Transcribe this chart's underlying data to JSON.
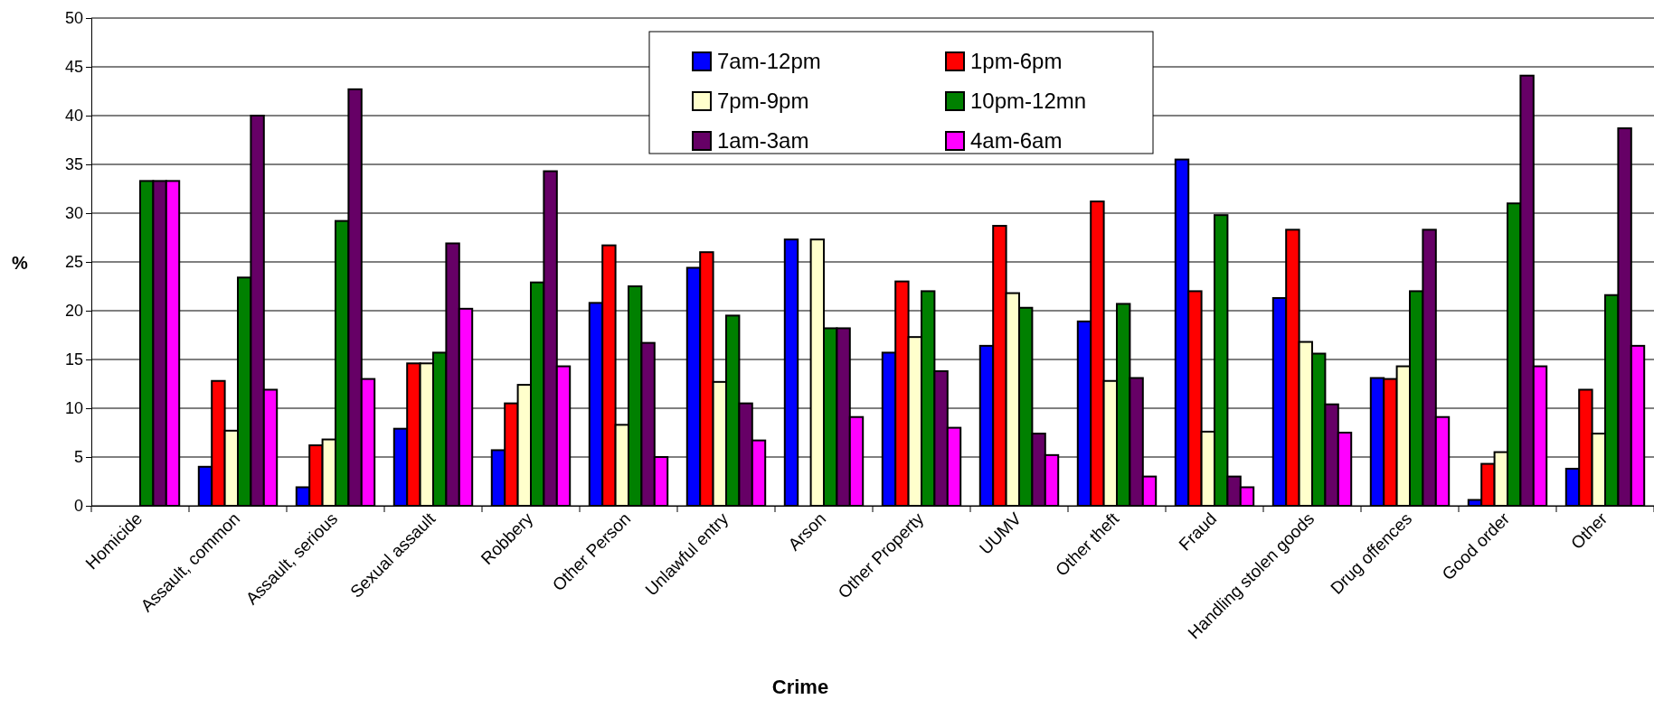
{
  "chart_data": {
    "type": "bar",
    "xlabel": "Crime",
    "ylabel": "%",
    "categories": [
      "Homicide",
      "Assault, common",
      "Assault, serious",
      "Sexual assault",
      "Robbery",
      "Other Person",
      "Unlawful entry",
      "Arson",
      "Other Property",
      "UUMV",
      "Other theft",
      "Fraud",
      "Handling stolen goods",
      "Drug offences",
      "Good order",
      "Other"
    ],
    "series": [
      {
        "name": "7am-12pm",
        "color": "#0000ff",
        "values": [
          0,
          4.0,
          1.9,
          7.9,
          5.7,
          20.8,
          24.4,
          27.3,
          15.7,
          16.4,
          18.9,
          35.5,
          21.3,
          13.1,
          0.6,
          3.8
        ]
      },
      {
        "name": "1pm-6pm",
        "color": "#ff0000",
        "values": [
          0,
          12.8,
          6.2,
          14.6,
          10.5,
          26.7,
          26.0,
          0,
          23.0,
          28.7,
          31.2,
          22.0,
          28.3,
          13.0,
          4.3,
          11.9
        ]
      },
      {
        "name": "7pm-9pm",
        "color": "#ffffcc",
        "values": [
          0,
          7.7,
          6.8,
          14.6,
          12.4,
          8.3,
          12.7,
          27.3,
          17.3,
          21.8,
          12.8,
          7.6,
          16.8,
          14.3,
          5.5,
          7.4
        ]
      },
      {
        "name": "10pm-12mn",
        "color": "#008000",
        "values": [
          33.3,
          23.4,
          29.2,
          15.7,
          22.9,
          22.5,
          19.5,
          18.2,
          22.0,
          20.3,
          20.7,
          29.8,
          15.6,
          22.0,
          31.0,
          21.6
        ]
      },
      {
        "name": "1am-3am",
        "color": "#660066",
        "values": [
          33.3,
          40.0,
          42.7,
          26.9,
          34.3,
          16.7,
          10.5,
          18.2,
          13.8,
          7.4,
          13.1,
          3.0,
          10.4,
          28.3,
          44.1,
          38.7
        ]
      },
      {
        "name": "4am-6am",
        "color": "#ff00ff",
        "values": [
          33.3,
          11.9,
          13.0,
          20.2,
          14.3,
          5.0,
          6.7,
          9.1,
          8.0,
          5.2,
          3.0,
          1.9,
          7.5,
          9.1,
          14.3,
          16.4
        ]
      }
    ],
    "ylim": [
      0,
      50
    ],
    "yticks": [
      0,
      5,
      10,
      15,
      20,
      25,
      30,
      35,
      40,
      45,
      50
    ],
    "grid": "y",
    "legend": "top"
  }
}
